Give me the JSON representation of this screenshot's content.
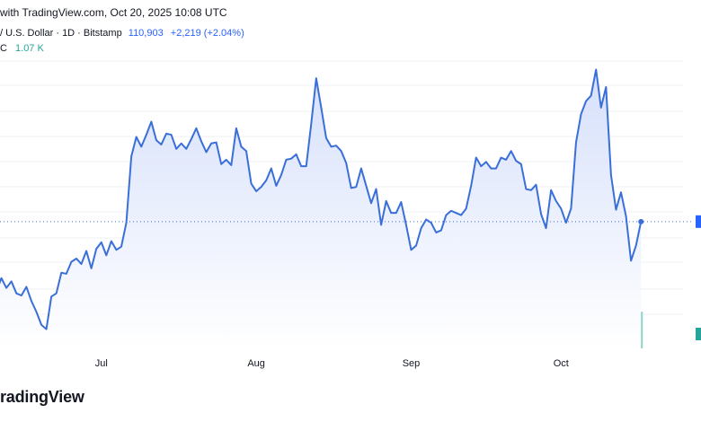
{
  "header": {
    "watermark_text": "with TradingView.com, Oct 20, 2025 10:08 UTC",
    "symbol_text": "/ U.S. Dollar · 1D · Bitstamp",
    "last_price": "110,903",
    "change": "+2,219 (+2.04%)",
    "volume_label": "C",
    "volume_value": "1.07 K"
  },
  "footer": {
    "logo_text": "radingView"
  },
  "colors": {
    "line": "#3a6fd8",
    "area_top": "#d6e0fb",
    "area_bottom": "#ffffff",
    "vol_up": "#8fd3c7",
    "vol_down": "#f2a3a8",
    "right_marker_price": "#2962ff",
    "right_marker_volume": "#26a69a",
    "dotted_line": "#3a6fd8"
  },
  "chart_data": {
    "type": "area",
    "x_tick_labels": [
      "Jul",
      "Aug",
      "Sep",
      "Oct"
    ],
    "x_tick_days": [
      21,
      52,
      83,
      113
    ],
    "ylim": [
      97000,
      128000
    ],
    "last_value": 110903,
    "values": [
      104500,
      105700,
      104800,
      105400,
      104300,
      104100,
      104900,
      103600,
      102600,
      101400,
      101000,
      104000,
      104300,
      106200,
      106100,
      107200,
      107500,
      107000,
      108200,
      106600,
      108400,
      109000,
      107800,
      109100,
      108300,
      108600,
      110800,
      116900,
      118700,
      117800,
      118900,
      120100,
      118400,
      118000,
      119000,
      118900,
      117600,
      118100,
      117600,
      118500,
      119500,
      118300,
      117300,
      118100,
      118200,
      116200,
      116600,
      116100,
      119500,
      117800,
      117400,
      114400,
      113700,
      114100,
      114700,
      115800,
      114200,
      115200,
      116600,
      116700,
      117100,
      116000,
      116000,
      119900,
      124100,
      121400,
      118600,
      117800,
      117900,
      117400,
      116300,
      114000,
      114100,
      115800,
      114200,
      112600,
      113900,
      110600,
      112800,
      111700,
      111700,
      112700,
      110600,
      108300,
      108700,
      110300,
      111100,
      110800,
      109900,
      110100,
      111500,
      111900,
      111700,
      111500,
      112100,
      114200,
      116800,
      116000,
      116400,
      115800,
      115800,
      116800,
      116600,
      117400,
      116500,
      116200,
      113900,
      113800,
      114300,
      111600,
      110300,
      113800,
      112800,
      112100,
      110800,
      112100,
      118200,
      120800,
      122000,
      122500,
      124900,
      121400,
      123300,
      115200,
      112000,
      113600,
      111400,
      107300,
      108700,
      110900
    ]
  }
}
